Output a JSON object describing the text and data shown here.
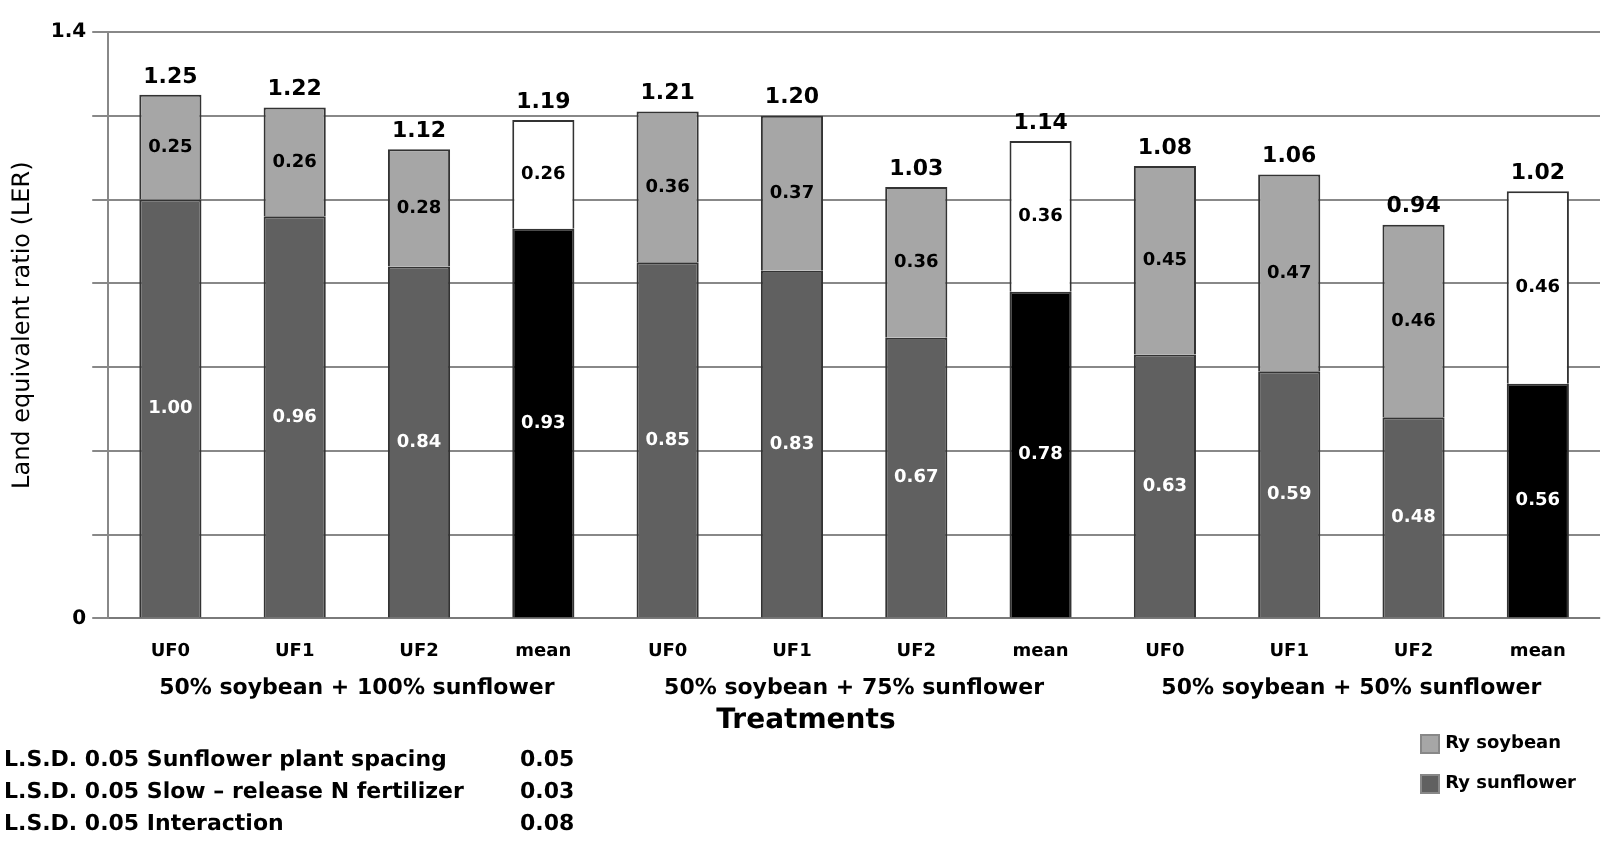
{
  "chart_data": {
    "type": "bar",
    "stacked": true,
    "ylabel": "Land equivalent ratio (LER)",
    "xlabel": "Treatments",
    "categories": [
      "UF0",
      "UF1",
      "UF2",
      "mean",
      "UF0",
      "UF1",
      "UF2",
      "mean",
      "UF0",
      "UF1",
      "UF2",
      "mean"
    ],
    "series": [
      {
        "name": "Ry sunflower",
        "color": "#606060",
        "colors": [
          "#606060",
          "#606060",
          "#606060",
          "#000000",
          "#606060",
          "#606060",
          "#606060",
          "#000000",
          "#606060",
          "#606060",
          "#606060",
          "#000000"
        ],
        "values": [
          1.0,
          0.96,
          0.84,
          0.93,
          0.85,
          0.83,
          0.67,
          0.78,
          0.63,
          0.59,
          0.48,
          0.56
        ],
        "value_labels": [
          "1.00",
          "0.96",
          "0.84",
          "0.93",
          "0.85",
          "0.83",
          "0.67",
          "0.78",
          "0.63",
          "0.59",
          "0.48",
          "0.56"
        ]
      },
      {
        "name": "Ry soybean",
        "color": "#a6a6a6",
        "colors": [
          "#a6a6a6",
          "#a6a6a6",
          "#a6a6a6",
          "#ffffff",
          "#a6a6a6",
          "#a6a6a6",
          "#a6a6a6",
          "#ffffff",
          "#a6a6a6",
          "#a6a6a6",
          "#a6a6a6",
          "#ffffff"
        ],
        "values": [
          0.25,
          0.26,
          0.28,
          0.26,
          0.36,
          0.37,
          0.36,
          0.36,
          0.45,
          0.47,
          0.46,
          0.46
        ],
        "value_labels": [
          "0.25",
          "0.26",
          "0.28",
          "0.26",
          "0.36",
          "0.37",
          "0.36",
          "0.36",
          "0.45",
          "0.47",
          "0.46",
          "0.46"
        ]
      }
    ],
    "totals": [
      "1.25",
      "1.22",
      "1.12",
      "1.19",
      "1.21",
      "1.20",
      "1.03",
      "1.14",
      "1.08",
      "1.06",
      "0.94",
      "1.02"
    ],
    "ylim": [
      0,
      1.4
    ],
    "yticks": [
      0,
      {
        "value": 0.2,
        "label": null
      },
      {
        "value": 0.4,
        "label": null
      },
      {
        "value": 0.6,
        "label": null
      },
      {
        "value": 0.8,
        "label": null
      },
      {
        "value": 1.0,
        "label": null
      },
      {
        "value": 1.2,
        "label": null
      },
      1.4
    ],
    "grid": "y",
    "legend": "bottom right",
    "annotations": [
      "50% soybean + 100% sunflower",
      "50% soybean + 75% sunflower",
      "50% soybean + 50% sunflower",
      "L.S.D. 0.05 Sunflower plant spacing\t0.05",
      "L.S.D. 0.05 Slow – release N fertilizer\t0.03",
      "L.S.D. 0.05 Interaction\t0.08"
    ]
  }
}
